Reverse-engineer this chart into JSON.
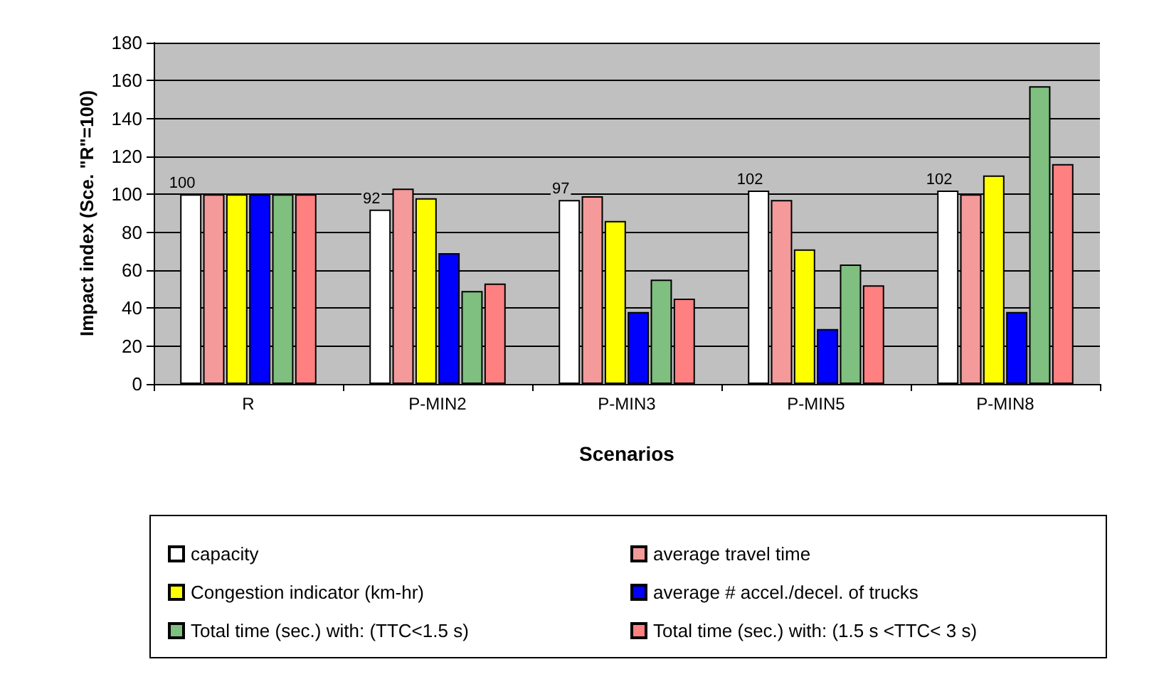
{
  "chart_data": {
    "type": "bar",
    "xlabel": "Scenarios",
    "ylabel": "Impact index (Sce. \"R\"=100)",
    "categories": [
      "R",
      "P-MIN2",
      "P-MIN3",
      "P-MIN5",
      "P-MIN8"
    ],
    "series": [
      {
        "name": "capacity",
        "color": "#ffffff",
        "values": [
          100,
          92,
          97,
          102,
          102
        ],
        "value_labels": [
          "100",
          "92",
          "97",
          "102",
          "102"
        ]
      },
      {
        "name": "average travel time",
        "color": "#f49a9a",
        "values": [
          100,
          103,
          99,
          97,
          100
        ]
      },
      {
        "name": "Congestion indicator (km-hr)",
        "color": "#ffff00",
        "values": [
          100,
          98,
          86,
          71,
          110
        ]
      },
      {
        "name": "average # accel./decel. of trucks",
        "color": "#0000ff",
        "values": [
          100,
          69,
          38,
          29,
          38
        ]
      },
      {
        "name": "Total time (sec.) with: (TTC<1.5 s)",
        "color": "#7fbf7f",
        "values": [
          100,
          49,
          55,
          63,
          157
        ]
      },
      {
        "name": "Total time (sec.) with: (1.5 s <TTC< 3 s)",
        "color": "#ff8080",
        "values": [
          100,
          53,
          45,
          52,
          116
        ]
      }
    ],
    "ylim": [
      0,
      180
    ],
    "yticks": [
      0,
      20,
      40,
      60,
      80,
      100,
      120,
      140,
      160,
      180
    ],
    "grid": "y",
    "legend": "bottom"
  }
}
